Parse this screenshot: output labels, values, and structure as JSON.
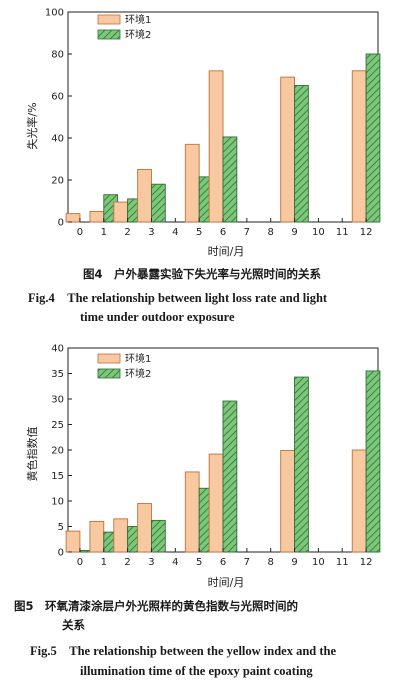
{
  "chart_data": [
    {
      "type": "bar",
      "x": [
        0,
        1,
        2,
        3,
        5,
        6,
        9,
        12
      ],
      "xticks": [
        "0",
        "1",
        "2",
        "3",
        "4",
        "5",
        "6",
        "7",
        "8",
        "9",
        "10",
        "11",
        "12"
      ],
      "xlim": [
        -0.5,
        12.5
      ],
      "ylim": [
        0,
        100
      ],
      "yticks": [
        "0",
        "20",
        "40",
        "60",
        "80",
        "100"
      ],
      "ylabel": "失光率/%",
      "xlabel": "时间/月",
      "legend_position": "top-left",
      "series": [
        {
          "name": "环境1",
          "values": [
            4,
            5,
            9.5,
            25,
            37,
            72,
            69,
            72
          ]
        },
        {
          "name": "环境2",
          "values": [
            0,
            13,
            11,
            18,
            21.5,
            40.5,
            65,
            80
          ]
        }
      ],
      "caption_zh": "图4　户外暴露实验下失光率与光照时间的关系",
      "caption_en_1": "Fig.4　The relationship between light loss rate and light",
      "caption_en_2": "time under outdoor exposure",
      "colors": {
        "series1_fill": "#f8c8a0",
        "series1_stroke": "#c0703a",
        "series2_fill": "#6fc070",
        "series2_stroke": "#2f6e33"
      }
    },
    {
      "type": "bar",
      "x": [
        0,
        1,
        2,
        3,
        5,
        6,
        9,
        12
      ],
      "xticks": [
        "0",
        "1",
        "2",
        "3",
        "4",
        "5",
        "6",
        "7",
        "8",
        "9",
        "10",
        "11",
        "12"
      ],
      "xlim": [
        -0.5,
        12.5
      ],
      "ylim": [
        0,
        40
      ],
      "yticks": [
        "0",
        "5",
        "10",
        "15",
        "20",
        "25",
        "30",
        "35",
        "40"
      ],
      "ylabel": "黄色指数值",
      "xlabel": "时间/月",
      "legend_position": "top-left",
      "series": [
        {
          "name": "环境1",
          "values": [
            4.1,
            6.0,
            6.5,
            9.5,
            15.7,
            19.2,
            19.9,
            20
          ]
        },
        {
          "name": "环境2",
          "values": [
            0.3,
            3.9,
            5.0,
            6.2,
            12.5,
            29.6,
            34.3,
            35.5
          ]
        }
      ],
      "caption_zh_1": "图5　环氧清漆涂层户外光照样的黄色指数与光照时间的",
      "caption_zh_2": "关系",
      "caption_en_1": "Fig.5　The relationship between the yellow index and the",
      "caption_en_2": "illumination time of the epoxy paint coating",
      "colors": {
        "series1_fill": "#f8c8a0",
        "series1_stroke": "#c0703a",
        "series2_fill": "#6fc070",
        "series2_stroke": "#2f6e33"
      }
    }
  ]
}
